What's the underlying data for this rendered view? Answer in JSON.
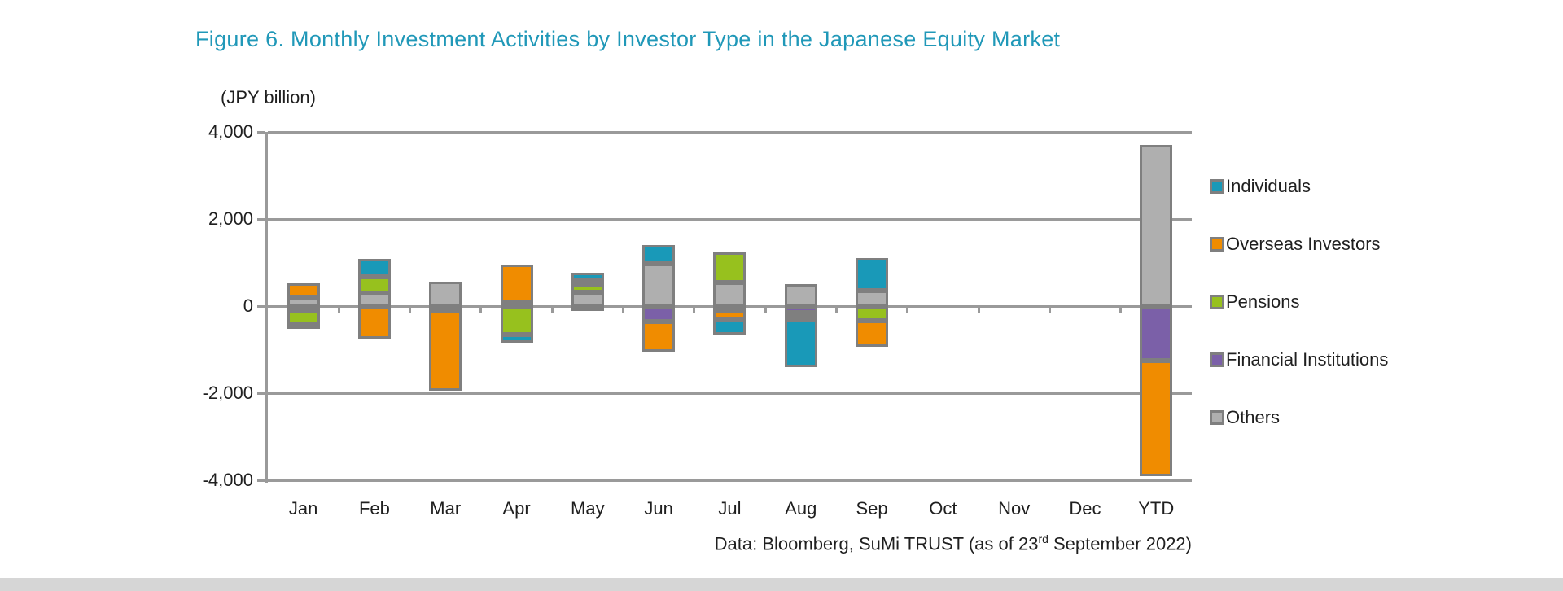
{
  "title": "Figure 6. Monthly Investment Activities by Investor Type in the Japanese Equity Market",
  "colors": {
    "title": "#2098B8",
    "text": "#1f1f1f",
    "grid": "#9A9A9A",
    "bar_border": "#7F7F7F",
    "bottom_strip": "#D6D6D6"
  },
  "y_axis": {
    "unit_label": "(JPY billion)",
    "ticks": [
      {
        "label": "4,000",
        "value": 4000
      },
      {
        "label": "2,000",
        "value": 2000
      },
      {
        "label": "0",
        "value": 0
      },
      {
        "label": "-2,000",
        "value": -2000
      },
      {
        "label": "-4,000",
        "value": -4000
      }
    ]
  },
  "source": {
    "prefix": "Data: Bloomberg, SuMi TRUST (as of 23",
    "superscript": "rd",
    "suffix": " September 2022)"
  },
  "chart_data": {
    "type": "bar",
    "stacked": true,
    "title": "Figure 6. Monthly Investment Activities by Investor Type in the Japanese Equity Market",
    "xlabel": "",
    "ylabel": "(JPY billion)",
    "ylim": [
      -4000,
      4000
    ],
    "grid": true,
    "legend_position": "right",
    "stacking_order": "reverse of legend order (Others nearest zero, Individuals outermost)",
    "categories": [
      "Jan",
      "Feb",
      "Mar",
      "Apr",
      "May",
      "Jun",
      "Jul",
      "Aug",
      "Sep",
      "Oct",
      "Nov",
      "Dec",
      "YTD"
    ],
    "series": [
      {
        "name": "Individuals",
        "color": "#1999B8",
        "values": [
          -105,
          410,
          0,
          -190,
          190,
          420,
          -360,
          -1095,
          750,
          0,
          0,
          0,
          0
        ]
      },
      {
        "name": "Overseas Investors",
        "color": "#F08C00",
        "values": [
          310,
          -740,
          -1860,
          860,
          75,
          -700,
          -200,
          -80,
          -590,
          0,
          0,
          0,
          -2650
        ]
      },
      {
        "name": "Pensions",
        "color": "#97C11E",
        "values": [
          -320,
          370,
          0,
          -650,
          190,
          0,
          680,
          -75,
          -340,
          0,
          0,
          0,
          0
        ]
      },
      {
        "name": "Financial Institutions",
        "color": "#7B60A8",
        "values": [
          -100,
          0,
          -90,
          0,
          -80,
          -350,
          -90,
          -150,
          0,
          0,
          0,
          0,
          -1250
        ]
      },
      {
        "name": "Others",
        "color": "#AFAFAF",
        "values": [
          205,
          295,
          570,
          90,
          310,
          980,
          550,
          500,
          350,
          0,
          0,
          0,
          3700
        ]
      }
    ]
  }
}
